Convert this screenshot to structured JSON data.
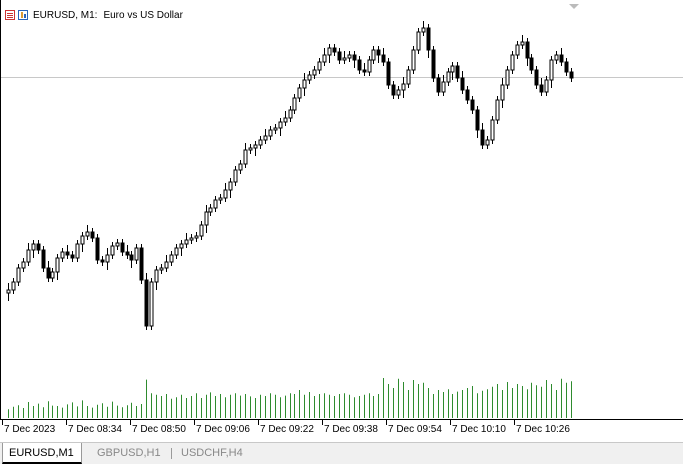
{
  "header": {
    "symbol_label": "EURUSD, M1:",
    "description": "Euro vs US Dollar"
  },
  "tabs": [
    {
      "label": "EURUSD,M1",
      "active": true
    },
    {
      "label": "GBPUSD,H1",
      "active": false
    },
    {
      "label": "USDCHF,H4",
      "active": false
    }
  ],
  "chart_data": {
    "type": "candlestick",
    "symbol": "EURUSD",
    "timeframe": "M1",
    "x_tick_labels": [
      "7 Dec 2023",
      "7 Dec 08:34",
      "7 Dec 08:50",
      "7 Dec 09:06",
      "7 Dec 09:22",
      "7 Dec 09:38",
      "7 Dec 09:54",
      "7 Dec 10:10",
      "7 Dec 10:26"
    ],
    "close_path": [
      290,
      282,
      268,
      262,
      250,
      244,
      250,
      268,
      278,
      272,
      258,
      252,
      255,
      258,
      244,
      236,
      232,
      238,
      260,
      262,
      255,
      246,
      243,
      252,
      255,
      260,
      248,
      280,
      326,
      282,
      270,
      268,
      262,
      255,
      248,
      244,
      240,
      238,
      236,
      225,
      212,
      208,
      200,
      198,
      190,
      182,
      170,
      164,
      150,
      148,
      145,
      140,
      136,
      130,
      128,
      122,
      118,
      110,
      98,
      88,
      80,
      75,
      70,
      62,
      55,
      48,
      52,
      60,
      58,
      55,
      60,
      70,
      72,
      60,
      50,
      55,
      62,
      85,
      95,
      90,
      84,
      70,
      50,
      32,
      28,
      50,
      78,
      92,
      82,
      72,
      66,
      78,
      90,
      100,
      110,
      130,
      145,
      140,
      120,
      100,
      85,
      70,
      55,
      45,
      42,
      58,
      70,
      85,
      92,
      80,
      60,
      55,
      62,
      72,
      78
    ],
    "volume_relative": [
      0.22,
      0.28,
      0.32,
      0.25,
      0.4,
      0.3,
      0.36,
      0.27,
      0.42,
      0.31,
      0.3,
      0.26,
      0.34,
      0.39,
      0.29,
      0.44,
      0.3,
      0.26,
      0.33,
      0.37,
      0.28,
      0.41,
      0.31,
      0.27,
      0.32,
      0.38,
      0.3,
      0.35,
      0.96,
      0.62,
      0.58,
      0.55,
      0.6,
      0.48,
      0.52,
      0.58,
      0.5,
      0.55,
      0.62,
      0.5,
      0.58,
      0.64,
      0.55,
      0.6,
      0.52,
      0.58,
      0.62,
      0.56,
      0.6,
      0.54,
      0.5,
      0.58,
      0.55,
      0.62,
      0.58,
      0.52,
      0.56,
      0.62,
      0.6,
      0.7,
      0.58,
      0.65,
      0.55,
      0.6,
      0.62,
      0.58,
      0.55,
      0.6,
      0.62,
      0.58,
      0.52,
      0.55,
      0.58,
      0.62,
      0.55,
      0.6,
      1.0,
      0.85,
      0.75,
      0.98,
      0.9,
      0.7,
      0.95,
      0.85,
      0.88,
      0.75,
      0.6,
      0.7,
      0.65,
      0.72,
      0.6,
      0.66,
      0.7,
      0.75,
      0.8,
      0.62,
      0.68,
      0.72,
      0.78,
      0.85,
      0.7,
      0.9,
      0.75,
      0.85,
      0.8,
      0.72,
      0.88,
      0.82,
      0.78,
      0.95,
      0.85,
      0.7,
      0.98,
      0.88,
      0.92
    ],
    "current_price_line": true,
    "grid": false,
    "volume_color": "#2e8b2e",
    "candle_color": "#000000",
    "price_line_color": "#c8c8c8"
  }
}
